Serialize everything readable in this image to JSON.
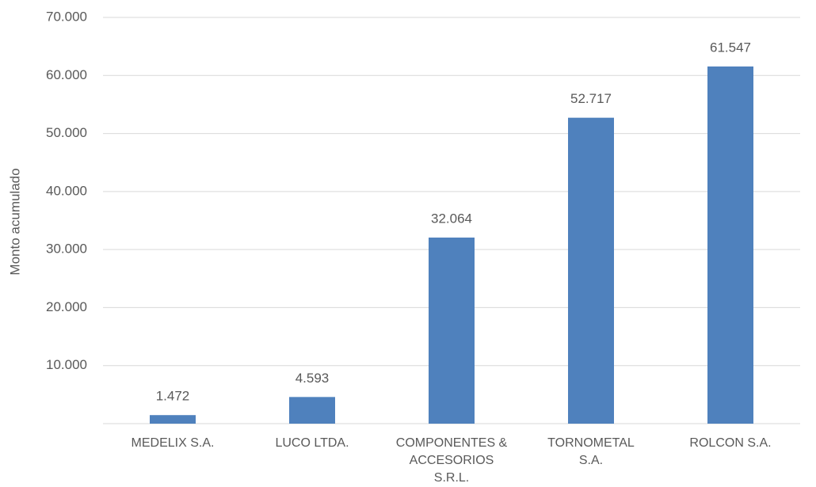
{
  "chart_data": {
    "type": "bar",
    "y_label": "Monto acumulado",
    "categories": [
      "MEDELIX S.A.",
      "LUCO LTDA.",
      "COMPONENTES & ACCESORIOS S.R.L.",
      "TORNOMETAL S.A.",
      "ROLCON S.A."
    ],
    "values": [
      1472,
      4593,
      32064,
      52717,
      61547
    ],
    "value_labels": [
      "1.472",
      "4.593",
      "32.064",
      "52.717",
      "61.547"
    ],
    "color": "#4f81bd",
    "ylim": [
      0,
      70000
    ],
    "yticks": [
      {
        "value": 10000,
        "label": "10.000"
      },
      {
        "value": 20000,
        "label": "20.000"
      },
      {
        "value": 30000,
        "label": "30.000"
      },
      {
        "value": 40000,
        "label": "40.000"
      },
      {
        "value": 50000,
        "label": "50.000"
      },
      {
        "value": 60000,
        "label": "60.000"
      },
      {
        "value": 70000,
        "label": "70.000"
      }
    ],
    "grid": true
  }
}
